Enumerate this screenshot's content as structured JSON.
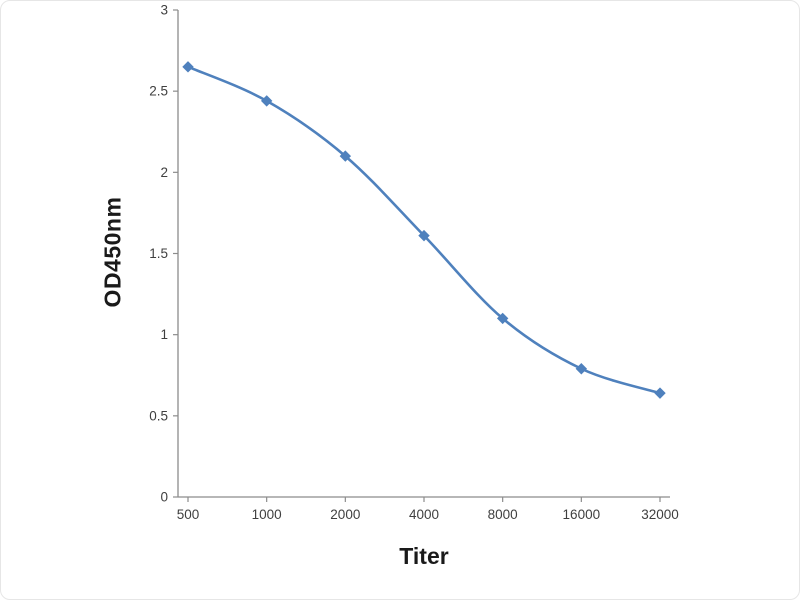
{
  "chart_data": {
    "type": "line",
    "title": "",
    "xlabel": "Titer",
    "ylabel": "OD450nm",
    "categories": [
      "500",
      "1000",
      "2000",
      "4000",
      "8000",
      "16000",
      "32000"
    ],
    "series": [
      {
        "name": "OD450nm vs Titer",
        "values": [
          2.65,
          2.44,
          2.1,
          1.61,
          1.1,
          0.79,
          0.64
        ],
        "color": "#4f81bd",
        "marker": "diamond"
      }
    ],
    "ylim": [
      0,
      3
    ],
    "yticks": [
      0,
      0.5,
      1,
      1.5,
      2,
      2.5,
      3
    ],
    "ytick_labels": [
      "0",
      "0.5",
      "1",
      "1.5",
      "2",
      "2.5",
      "3"
    ],
    "grid": false,
    "legend_position": "none",
    "axis_color": "#8c8c8c",
    "tick_label_color": "#3f3f3f",
    "background_color": "#ffffff"
  }
}
